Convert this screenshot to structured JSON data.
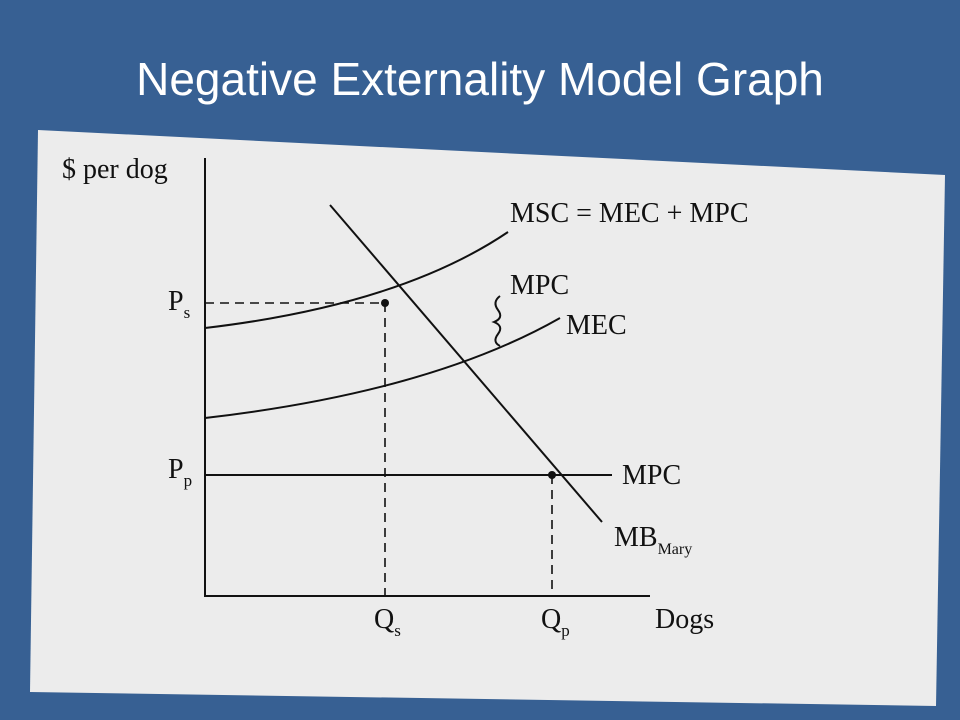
{
  "header": {
    "title": "Negative Externality Model Graph"
  },
  "diagram": {
    "y_axis_label": "$ per dog",
    "x_axis_label": "Dogs",
    "curves": {
      "msc": "MSC = MEC + MPC",
      "mpc_upper": "MPC",
      "mec": "MEC",
      "mpc_private": "MPC",
      "mb": {
        "main": "MB",
        "sub": "Mary"
      }
    },
    "prices": {
      "social": {
        "main": "P",
        "sub": "s"
      },
      "private": {
        "main": "P",
        "sub": "p"
      }
    },
    "quantities": {
      "social": {
        "main": "Q",
        "sub": "s"
      },
      "private": {
        "main": "Q",
        "sub": "p"
      }
    }
  }
}
